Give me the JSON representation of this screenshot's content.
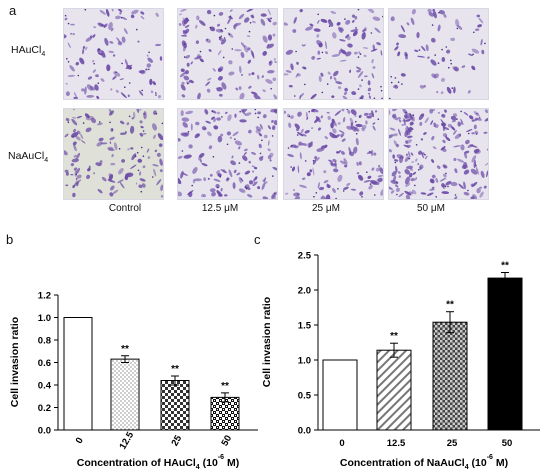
{
  "panel_a": {
    "letter": "a",
    "rows": [
      {
        "label": "HAuCl",
        "sub": "4"
      },
      {
        "label": "NaAuCl",
        "sub": "4"
      }
    ],
    "conditions": [
      "Control",
      "12.5 μM",
      "25 μM",
      "50 μM"
    ],
    "colors": {
      "stain": "#6b4aa6",
      "background": "#e7e4ee",
      "background_na": "#dfe0d8"
    }
  },
  "panel_b": {
    "letter": "b"
  },
  "panel_c": {
    "letter": "c"
  },
  "chart_data": [
    {
      "type": "bar",
      "panel": "b",
      "categories": [
        "0",
        "12.5",
        "25",
        "50"
      ],
      "values": [
        1.0,
        0.63,
        0.44,
        0.29
      ],
      "errors": [
        0.0,
        0.03,
        0.04,
        0.04
      ],
      "significance": [
        "",
        "**",
        "**",
        "**"
      ],
      "xlabel": "Concentration of HAuCl",
      "xlabel_sub": "4",
      "xlabel_unit": "(10",
      "xlabel_exp": "-6",
      "xlabel_end": "M)",
      "ylabel": "Cell invasion ratio",
      "ylim": [
        0,
        1.2
      ],
      "yticks": [
        "0.0",
        "0.2",
        "0.4",
        "0.6",
        "0.8",
        "1.0",
        "1.2"
      ],
      "fills": [
        "white",
        "dots",
        "check-small",
        "check-large"
      ],
      "grid": false
    },
    {
      "type": "bar",
      "panel": "c",
      "categories": [
        "0",
        "12.5",
        "25",
        "50"
      ],
      "values": [
        1.0,
        1.14,
        1.54,
        2.17
      ],
      "errors": [
        0.0,
        0.1,
        0.15,
        0.08
      ],
      "significance": [
        "",
        "**",
        "**",
        "**"
      ],
      "xlabel": "Concentration of NaAuCl",
      "xlabel_sub": "4",
      "xlabel_unit": "(10",
      "xlabel_exp": "-6",
      "xlabel_end": "M)",
      "ylabel": "Cell invasion ratio",
      "ylim": [
        0,
        2.5
      ],
      "yticks": [
        "0.0",
        "0.5",
        "1.0",
        "1.5",
        "2.0",
        "2.5"
      ],
      "fills": [
        "white",
        "diagonal",
        "check",
        "black"
      ],
      "grid": false
    }
  ]
}
